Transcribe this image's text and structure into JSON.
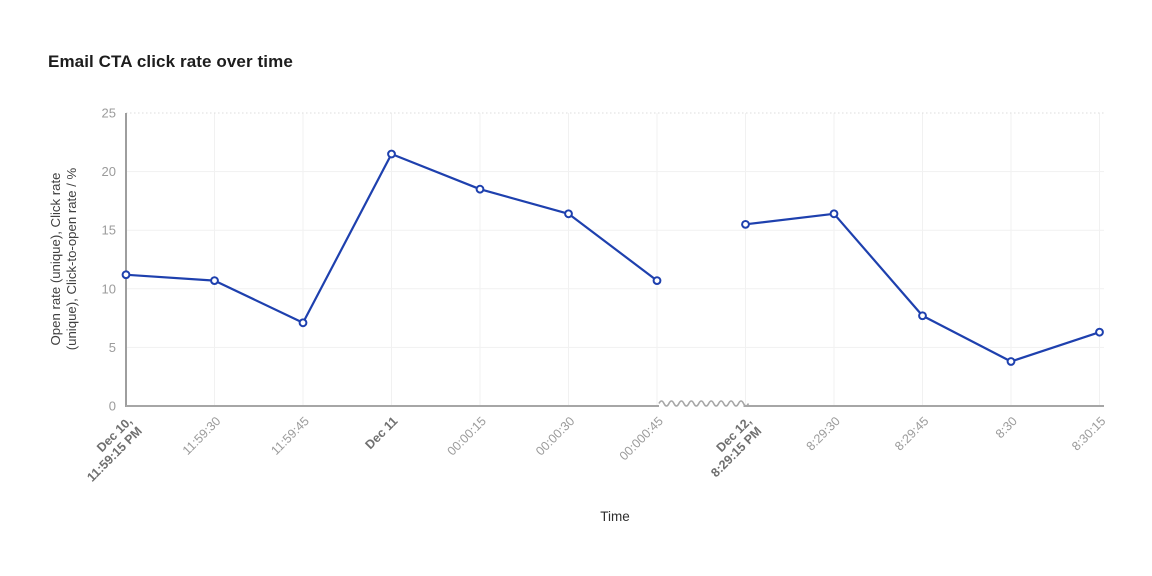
{
  "title": "Email CTA click rate over time",
  "chart_data": {
    "type": "line",
    "title": "Email CTA click rate over time",
    "xlabel": "Time",
    "ylabel_line1": "Open rate (unique), Click rate",
    "ylabel_line2": "(unique), Click-to-open rate / %",
    "ylim": [
      0,
      25
    ],
    "yticks": [
      0,
      5,
      10,
      15,
      20,
      25
    ],
    "grid": true,
    "legend": "none",
    "categories": [
      "Dec 10,\n11:59:15 PM",
      "11:59:30",
      "11:59:45",
      "Dec 11",
      "00:00:15",
      "00:00:30",
      "00:000:45",
      "Dec 12,\n8:29:15 PM",
      "8:29:30",
      "8:29:45",
      "8:30",
      "8:30:15"
    ],
    "bold_categories": [
      true,
      false,
      false,
      true,
      false,
      false,
      false,
      true,
      false,
      false,
      false,
      false
    ],
    "values": [
      11.2,
      10.7,
      7.1,
      21.5,
      18.5,
      16.4,
      10.7,
      15.5,
      16.4,
      7.7,
      3.8,
      6.3
    ],
    "segments": [
      [
        0,
        6
      ],
      [
        7,
        11
      ]
    ],
    "axis_break_between": [
      6,
      7
    ],
    "line_color": "#1e40ae",
    "marker": "open-circle",
    "tick_label_color": "#9b9b9b",
    "bold_tick_label_color": "#6f6f6f",
    "axis_title_color": "#3f3f3f",
    "axis_line_color": "#a6a6a6",
    "gridline_color": "#f1f1f1"
  }
}
